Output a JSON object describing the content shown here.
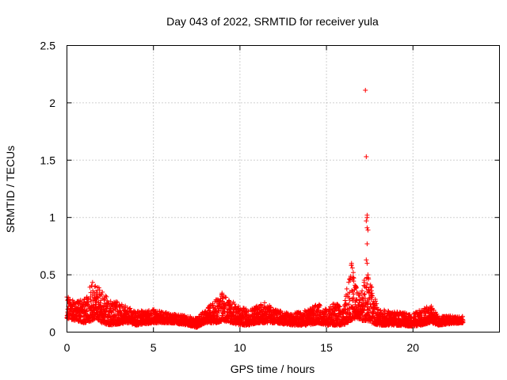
{
  "chart_data": {
    "type": "scatter",
    "title": "Day 043 of 2022, SRMTID for receiver yula",
    "xlabel": "GPS time / hours",
    "ylabel": "SRMTID / TECUs",
    "xlim": [
      0,
      25
    ],
    "ylim": [
      0,
      2.5
    ],
    "x_ticks": [
      0,
      5,
      10,
      15,
      20
    ],
    "x_tick_labels": [
      "0",
      "5",
      "10",
      "15",
      "20"
    ],
    "y_ticks": [
      0,
      0.5,
      1,
      1.5,
      2,
      2.5
    ],
    "y_tick_labels": [
      "0",
      "0.5",
      "1",
      "1.5",
      "2",
      "2.5"
    ],
    "grid": true,
    "marker": "+",
    "marker_color": "#ff0000",
    "background_series": {
      "description_note": "dense cluster of points between x=0 and x=22.9 hours",
      "x_range": [
        0.0,
        22.9
      ],
      "envelope_x": [
        0.0,
        0.5,
        1.0,
        1.5,
        1.7,
        2.0,
        2.5,
        3.0,
        3.5,
        4.0,
        5.0,
        6.0,
        7.0,
        7.5,
        8.0,
        8.7,
        9.0,
        9.5,
        10.0,
        10.5,
        11.0,
        11.5,
        12.0,
        13.0,
        14.0,
        14.5,
        15.0,
        15.5,
        16.0,
        16.4,
        16.7,
        17.0,
        17.3,
        17.6,
        18.0,
        19.0,
        20.0,
        20.5,
        21.0,
        21.5,
        22.0,
        22.9
      ],
      "envelope_low": [
        0.12,
        0.1,
        0.08,
        0.1,
        0.12,
        0.08,
        0.06,
        0.07,
        0.08,
        0.06,
        0.08,
        0.08,
        0.06,
        0.04,
        0.08,
        0.08,
        0.1,
        0.08,
        0.06,
        0.06,
        0.08,
        0.08,
        0.08,
        0.06,
        0.06,
        0.08,
        0.06,
        0.06,
        0.06,
        0.1,
        0.12,
        0.1,
        0.1,
        0.08,
        0.06,
        0.06,
        0.05,
        0.06,
        0.08,
        0.06,
        0.07,
        0.08
      ],
      "envelope_high": [
        0.32,
        0.26,
        0.3,
        0.45,
        0.42,
        0.36,
        0.28,
        0.26,
        0.22,
        0.18,
        0.2,
        0.16,
        0.14,
        0.12,
        0.2,
        0.3,
        0.35,
        0.28,
        0.22,
        0.2,
        0.24,
        0.26,
        0.2,
        0.16,
        0.2,
        0.25,
        0.2,
        0.26,
        0.2,
        0.62,
        0.4,
        0.35,
        0.55,
        0.4,
        0.2,
        0.18,
        0.16,
        0.2,
        0.24,
        0.14,
        0.14,
        0.14
      ]
    },
    "outlier_points": {
      "x": [
        17.25,
        17.3,
        17.35,
        17.35,
        17.3,
        17.35,
        17.4,
        17.35,
        17.3,
        17.35,
        17.4,
        17.35,
        16.45,
        16.5,
        16.55,
        16.5
      ],
      "y": [
        2.11,
        1.53,
        1.02,
        1.0,
        0.97,
        0.91,
        0.89,
        0.77,
        0.63,
        0.6,
        0.5,
        0.42,
        0.6,
        0.56,
        0.52,
        0.46
      ]
    }
  }
}
